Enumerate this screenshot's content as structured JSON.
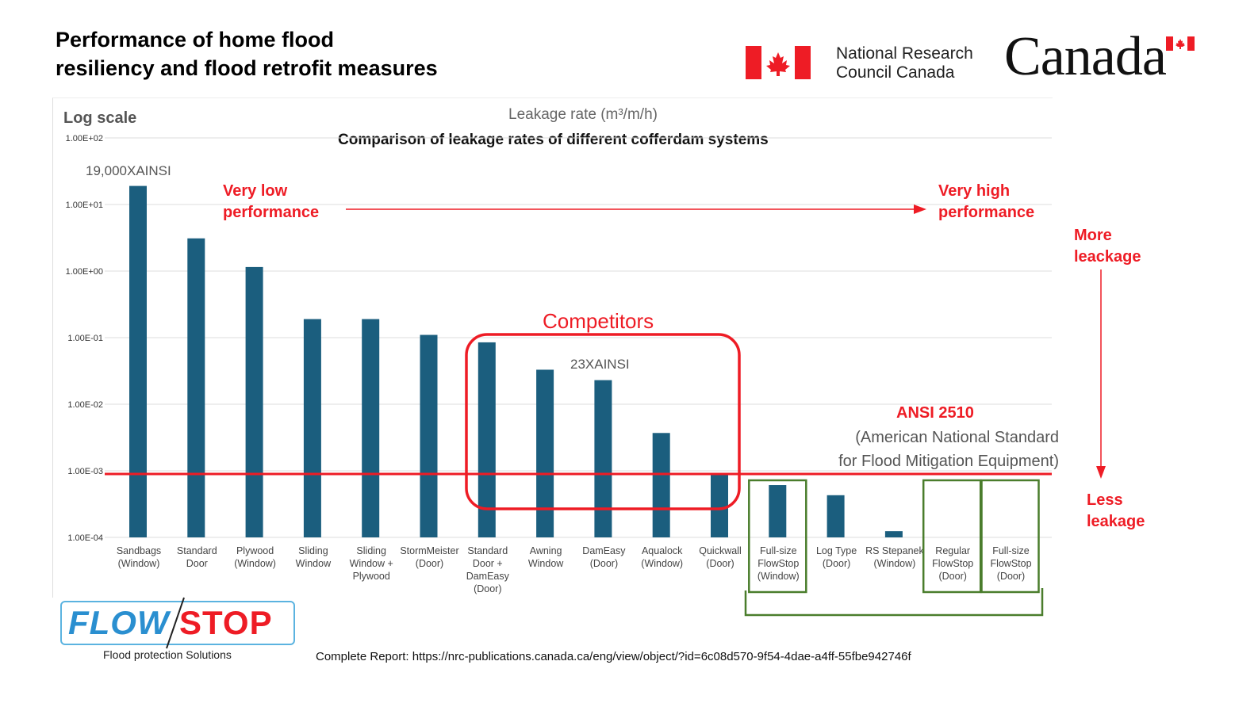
{
  "header": {
    "title_line1": "Performance of home flood",
    "title_line2": "resiliency and flood retrofit measures",
    "nrc_line1": "National Research",
    "nrc_line2": "Council Canada",
    "canada_wordmark": "Canada"
  },
  "colors": {
    "bar": "#1b5e7e",
    "ansi_line": "#ee1c25",
    "competitor_box": "#ee1c25",
    "flowstop_box": "#4a7d2c",
    "annotation_red": "#ee1c25"
  },
  "annotations": {
    "log_scale": "Log scale",
    "sandbags_note": "19,000XAINSI",
    "damEasy_note": "23XAINSI",
    "very_low_1": "Very low",
    "very_low_2": "performance",
    "very_high_1": "Very high",
    "very_high_2": "performance",
    "more_1": "More",
    "more_2": "leackage",
    "less_1": "Less",
    "less_2": "leakage",
    "competitors": "Competitors",
    "ansi_title": "ANSI 2510",
    "ansi_sub1": "(American National Standard",
    "ansi_sub2": "for Flood Mitigation Equipment)"
  },
  "footer": {
    "report": "Complete Report:  https://nrc-publications.canada.ca/eng/view/object/?id=6c08d570-9f54-4dae-a4ff-55fbe942746f",
    "logo_flow": "FLOW",
    "logo_stop": "STOP",
    "logo_tagline": "Flood protection Solutions"
  },
  "chart_data": {
    "type": "bar",
    "title": "Comparison of leakage rates of different cofferdam systems",
    "ylabel": "Leakage rate (m³/m/h)",
    "yscale": "log",
    "ylim": [
      0.0001,
      100
    ],
    "yticks": [
      "1.00E+02",
      "1.00E+01",
      "1.00E+00",
      "1.00E-01",
      "1.00E-02",
      "1.00E-03",
      "1.00E-04"
    ],
    "ytick_values": [
      100,
      10,
      1,
      0.1,
      0.01,
      0.001,
      0.0001
    ],
    "grid": true,
    "reference_line": {
      "label": "ANSI 2510",
      "value": 0.001
    },
    "categories": [
      [
        "Sandbags",
        "(Window)"
      ],
      [
        "Standard",
        "Door"
      ],
      [
        "Plywood",
        "(Window)"
      ],
      [
        "Sliding",
        "Window"
      ],
      [
        "Sliding",
        "Window +",
        "Plywood"
      ],
      [
        "StormMeister",
        "(Door)"
      ],
      [
        "Standard",
        "Door +",
        "DamEasy",
        "(Door)"
      ],
      [
        "Awning",
        "Window"
      ],
      [
        "DamEasy",
        "(Door)"
      ],
      [
        "Aqualock",
        "(Window)"
      ],
      [
        "Quickwall",
        "(Door)"
      ],
      [
        "Full-size",
        "FlowStop",
        "(Window)"
      ],
      [
        "Log Type",
        "(Door)"
      ],
      [
        "RS Stepanek",
        "(Window)"
      ],
      [
        "Regular",
        "FlowStop",
        "(Door)"
      ],
      [
        "Full-size",
        "FlowStop",
        "(Door)"
      ]
    ],
    "values": [
      19,
      3.1,
      1.15,
      0.19,
      0.19,
      0.11,
      0.085,
      0.033,
      0.023,
      0.0037,
      0.0009,
      0.00061,
      0.00043,
      0.000124,
      0,
      0
    ],
    "competitor_indices": [
      6,
      7,
      8,
      9,
      10
    ],
    "flowstop_indices": [
      11,
      14,
      15
    ]
  }
}
